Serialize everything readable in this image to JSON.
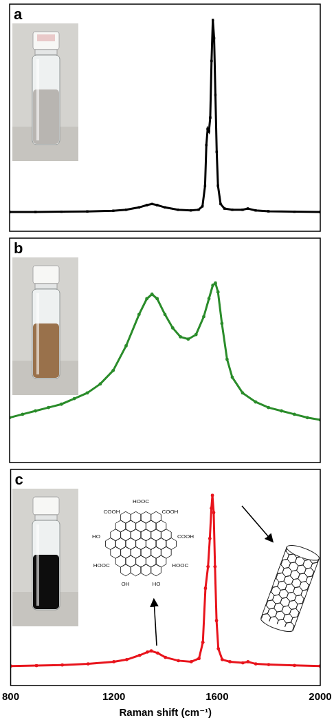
{
  "chart_data": [
    {
      "type": "scatter",
      "title": "a",
      "x": [
        800,
        900,
        1000,
        1100,
        1200,
        1250,
        1300,
        1330,
        1350,
        1370,
        1400,
        1450,
        1500,
        1530,
        1545,
        1555,
        1560,
        1565,
        1570,
        1575,
        1580,
        1585,
        1590,
        1595,
        1600,
        1605,
        1615,
        1630,
        1660,
        1700,
        1720,
        1750,
        1800,
        1900,
        2000
      ],
      "values": [
        0.085,
        0.085,
        0.086,
        0.087,
        0.09,
        0.095,
        0.105,
        0.115,
        0.12,
        0.115,
        0.105,
        0.095,
        0.092,
        0.095,
        0.11,
        0.2,
        0.38,
        0.45,
        0.44,
        0.5,
        0.75,
        0.93,
        0.85,
        0.6,
        0.35,
        0.2,
        0.12,
        0.1,
        0.095,
        0.095,
        0.1,
        0.092,
        0.088,
        0.086,
        0.085
      ],
      "color": "#000000",
      "marker": "square",
      "xlim": [
        800,
        2000
      ],
      "ylim": [
        0,
        1
      ],
      "tick_labels": false
    },
    {
      "type": "scatter",
      "title": "b",
      "x": [
        800,
        850,
        900,
        950,
        1000,
        1050,
        1100,
        1150,
        1200,
        1250,
        1300,
        1330,
        1350,
        1370,
        1400,
        1430,
        1460,
        1490,
        1520,
        1550,
        1570,
        1585,
        1595,
        1605,
        1620,
        1640,
        1660,
        1700,
        1750,
        1800,
        1850,
        1900,
        1950,
        2000
      ],
      "values": [
        0.2,
        0.215,
        0.23,
        0.245,
        0.26,
        0.285,
        0.31,
        0.35,
        0.41,
        0.52,
        0.66,
        0.73,
        0.75,
        0.73,
        0.66,
        0.6,
        0.56,
        0.55,
        0.57,
        0.65,
        0.73,
        0.79,
        0.8,
        0.76,
        0.62,
        0.46,
        0.38,
        0.31,
        0.27,
        0.245,
        0.23,
        0.215,
        0.2,
        0.19
      ],
      "color": "#2a8c2a",
      "marker": "circle",
      "xlim": [
        800,
        2000
      ],
      "ylim": [
        0,
        1
      ],
      "tick_labels": false
    },
    {
      "type": "scatter",
      "title": "c",
      "x": [
        800,
        900,
        1000,
        1100,
        1200,
        1250,
        1300,
        1330,
        1345,
        1370,
        1400,
        1450,
        1500,
        1530,
        1545,
        1555,
        1565,
        1572,
        1578,
        1582,
        1587,
        1592,
        1598,
        1605,
        1620,
        1650,
        1700,
        1720,
        1750,
        1800,
        1900,
        2000
      ],
      "values": [
        0.09,
        0.092,
        0.095,
        0.1,
        0.11,
        0.12,
        0.14,
        0.155,
        0.16,
        0.15,
        0.13,
        0.115,
        0.11,
        0.125,
        0.2,
        0.45,
        0.55,
        0.68,
        0.82,
        0.88,
        0.8,
        0.55,
        0.3,
        0.17,
        0.12,
        0.11,
        0.105,
        0.11,
        0.1,
        0.097,
        0.093,
        0.09
      ],
      "color": "#e8141c",
      "marker": "circle",
      "xlabel": "Raman shift (cm⁻¹)",
      "xlim": [
        800,
        2000
      ],
      "xticks": [
        800,
        1200,
        1600,
        2000
      ],
      "ylim": [
        0,
        1
      ],
      "tick_labels": "x",
      "annotations": [
        "HOOC",
        "COOH",
        "COOH",
        "HOOC",
        "HO",
        "OH",
        "HOOC",
        "HO",
        "COOH"
      ]
    }
  ]
}
